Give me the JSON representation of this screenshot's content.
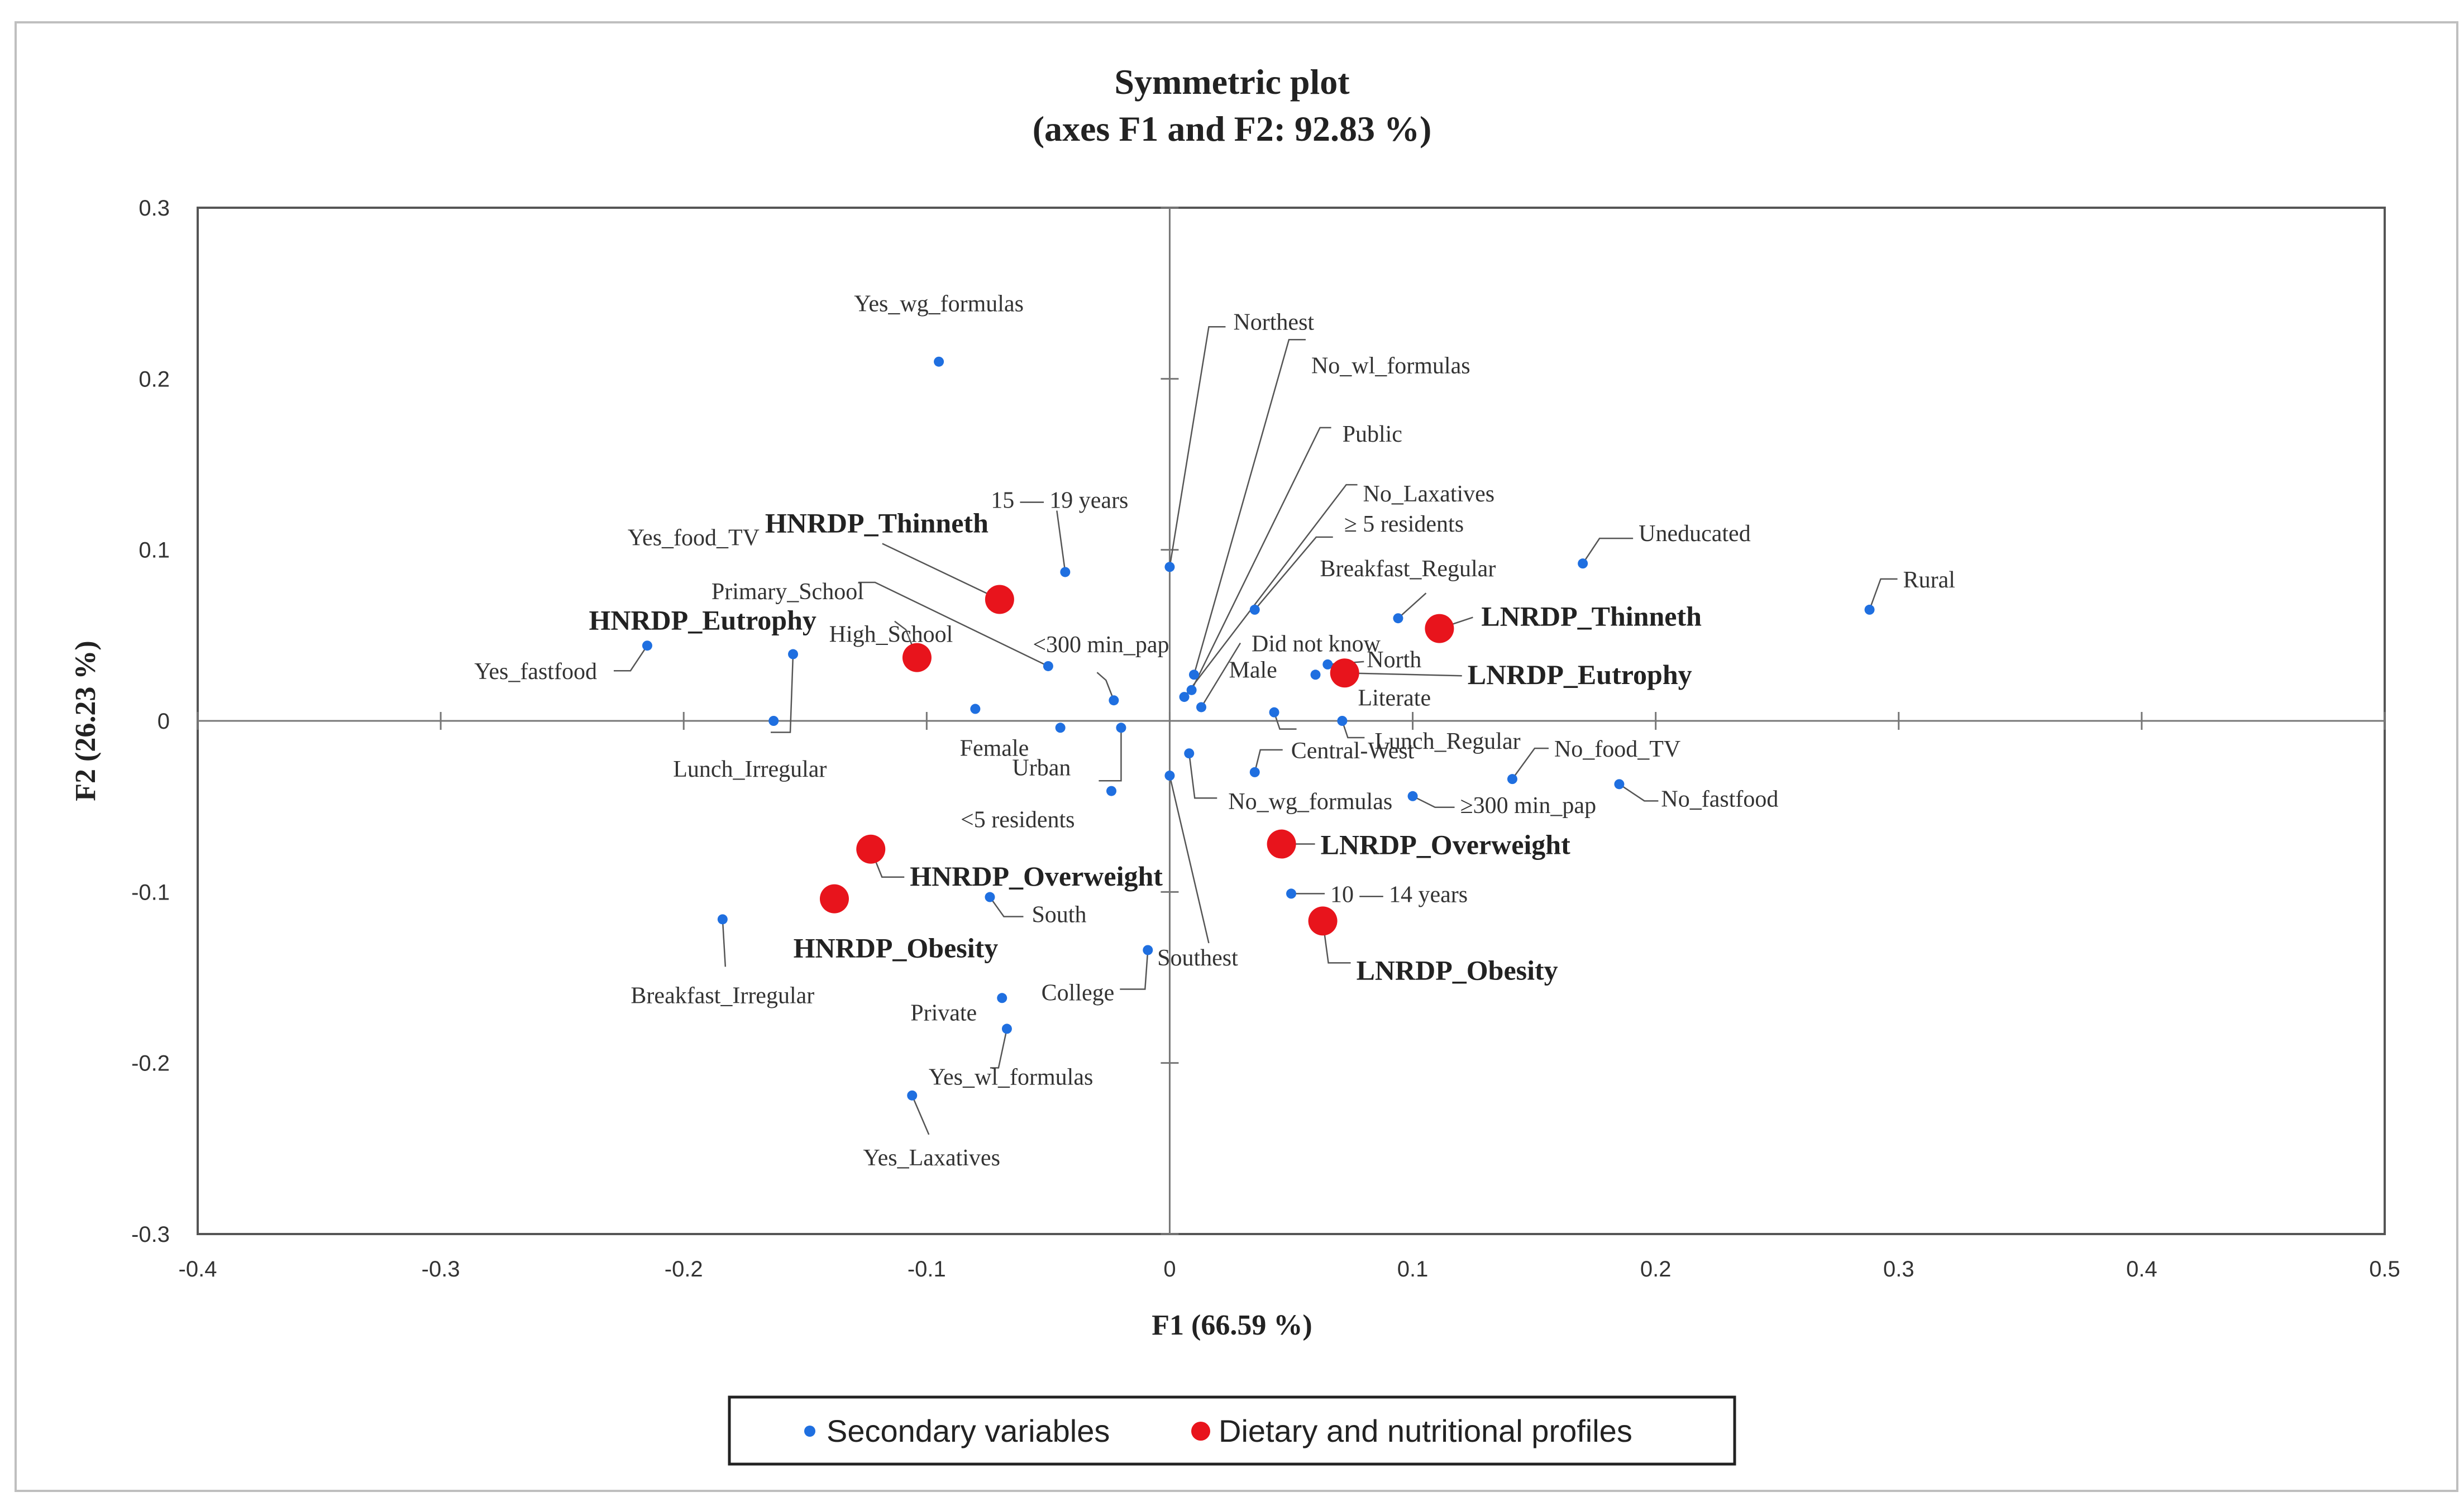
{
  "chart_data": {
    "type": "scatter",
    "title": "Symmetric plot",
    "subtitle": "(axes F1 and F2: 92.83 %)",
    "xlabel": "F1 (66.59 %)",
    "ylabel": "F2 (26.23 %)",
    "xlim": [
      -0.4,
      0.5
    ],
    "ylim": [
      -0.3,
      0.3
    ],
    "xticks": [
      -0.4,
      -0.3,
      -0.2,
      -0.1,
      0,
      0.1,
      0.2,
      0.3,
      0.4,
      0.5
    ],
    "yticks": [
      -0.3,
      -0.2,
      -0.1,
      0,
      0.1,
      0.2,
      0.3
    ],
    "xtick_labels": [
      "-0.4",
      "-0.3",
      "-0.2",
      "-0.1",
      "0",
      "0.1",
      "0.2",
      "0.3",
      "0.4",
      "0.5"
    ],
    "ytick_labels": [
      "-0.3",
      "-0.2",
      "-0.1",
      "0",
      "0.1",
      "0.2",
      "0.3"
    ],
    "grid": false,
    "legend_position": "bottom",
    "series": [
      {
        "name": "Secondary variables",
        "color": "#1f6fe0",
        "points": [
          {
            "label": "Yes_wg_formulas",
            "x": -0.095,
            "y": 0.21
          },
          {
            "label": "Northest",
            "x": 0.0,
            "y": 0.09
          },
          {
            "label": "No_wl_formulas",
            "x": 0.01,
            "y": 0.027
          },
          {
            "label": "Public",
            "x": 0.009,
            "y": 0.018
          },
          {
            "label": "No_Laxatives",
            "x": 0.006,
            "y": 0.014
          },
          {
            "label": "≥ 5 residents",
            "x": 0.035,
            "y": 0.065
          },
          {
            "label": "Uneducated",
            "x": 0.17,
            "y": 0.092
          },
          {
            "label": "Rural",
            "x": 0.288,
            "y": 0.065
          },
          {
            "label": "Breakfast_Regular",
            "x": 0.094,
            "y": 0.06
          },
          {
            "label": "15 — 19 years",
            "x": -0.043,
            "y": 0.087
          },
          {
            "label": "Primary_School",
            "x": -0.05,
            "y": 0.032
          },
          {
            "label": "<300 min_pap",
            "x": -0.023,
            "y": 0.012
          },
          {
            "label": "Did not know",
            "x": 0.013,
            "y": 0.008
          },
          {
            "label": "North",
            "x": 0.065,
            "y": 0.033
          },
          {
            "label": "Male",
            "x": 0.06,
            "y": 0.027
          },
          {
            "label": "Literate",
            "x": 0.043,
            "y": 0.005
          },
          {
            "label": "Yes_fastfood",
            "x": -0.215,
            "y": 0.044
          },
          {
            "label": "Yes_food_TV",
            "x": -0.155,
            "y": 0.039
          },
          {
            "label": "High_School",
            "x": -0.08,
            "y": 0.007
          },
          {
            "label": "Lunch_Irregular",
            "x": -0.163,
            "y": 0.0
          },
          {
            "label": "Female",
            "x": -0.045,
            "y": -0.004
          },
          {
            "label": "Urban",
            "x": -0.02,
            "y": -0.004
          },
          {
            "label": "<5 residents",
            "x": -0.024,
            "y": -0.041
          },
          {
            "label": "Lunch_Regular",
            "x": 0.071,
            "y": 0.0
          },
          {
            "label": "Central-West",
            "x": 0.035,
            "y": -0.03
          },
          {
            "label": "No_food_TV",
            "x": 0.141,
            "y": -0.034
          },
          {
            "label": "No_fastfood",
            "x": 0.185,
            "y": -0.037
          },
          {
            "label": "No_wg_formulas",
            "x": 0.008,
            "y": -0.019
          },
          {
            "label": "≥300 min_pap",
            "x": 0.1,
            "y": -0.044
          },
          {
            "label": "Southest",
            "x": 0.0,
            "y": -0.032
          },
          {
            "label": "10 — 14 years",
            "x": 0.05,
            "y": -0.101
          },
          {
            "label": "South",
            "x": -0.074,
            "y": -0.103
          },
          {
            "label": "Breakfast_Irregular",
            "x": -0.184,
            "y": -0.116
          },
          {
            "label": "College",
            "x": -0.009,
            "y": -0.134
          },
          {
            "label": "Private",
            "x": -0.069,
            "y": -0.162
          },
          {
            "label": "Yes_wl_formulas",
            "x": -0.067,
            "y": -0.18
          },
          {
            "label": "Yes_Laxatives",
            "x": -0.106,
            "y": -0.219
          }
        ]
      },
      {
        "name": "Dietary and nutritional profiles",
        "color": "#e8141c",
        "points": [
          {
            "label": "HNRDP_Thinneth",
            "x": -0.07,
            "y": 0.071
          },
          {
            "label": "HNRDP_Eutrophy",
            "x": -0.104,
            "y": 0.037
          },
          {
            "label": "LNRDP_Thinneth",
            "x": 0.111,
            "y": 0.054
          },
          {
            "label": "LNRDP_Eutrophy",
            "x": 0.072,
            "y": 0.028
          },
          {
            "label": "HNRDP_Overweight",
            "x": -0.123,
            "y": -0.075
          },
          {
            "label": "HNRDP_Obesity",
            "x": -0.138,
            "y": -0.104
          },
          {
            "label": "LNRDP_Overweight",
            "x": 0.046,
            "y": -0.072
          },
          {
            "label": "LNRDP_Obesity",
            "x": 0.063,
            "y": -0.117
          }
        ]
      }
    ]
  }
}
